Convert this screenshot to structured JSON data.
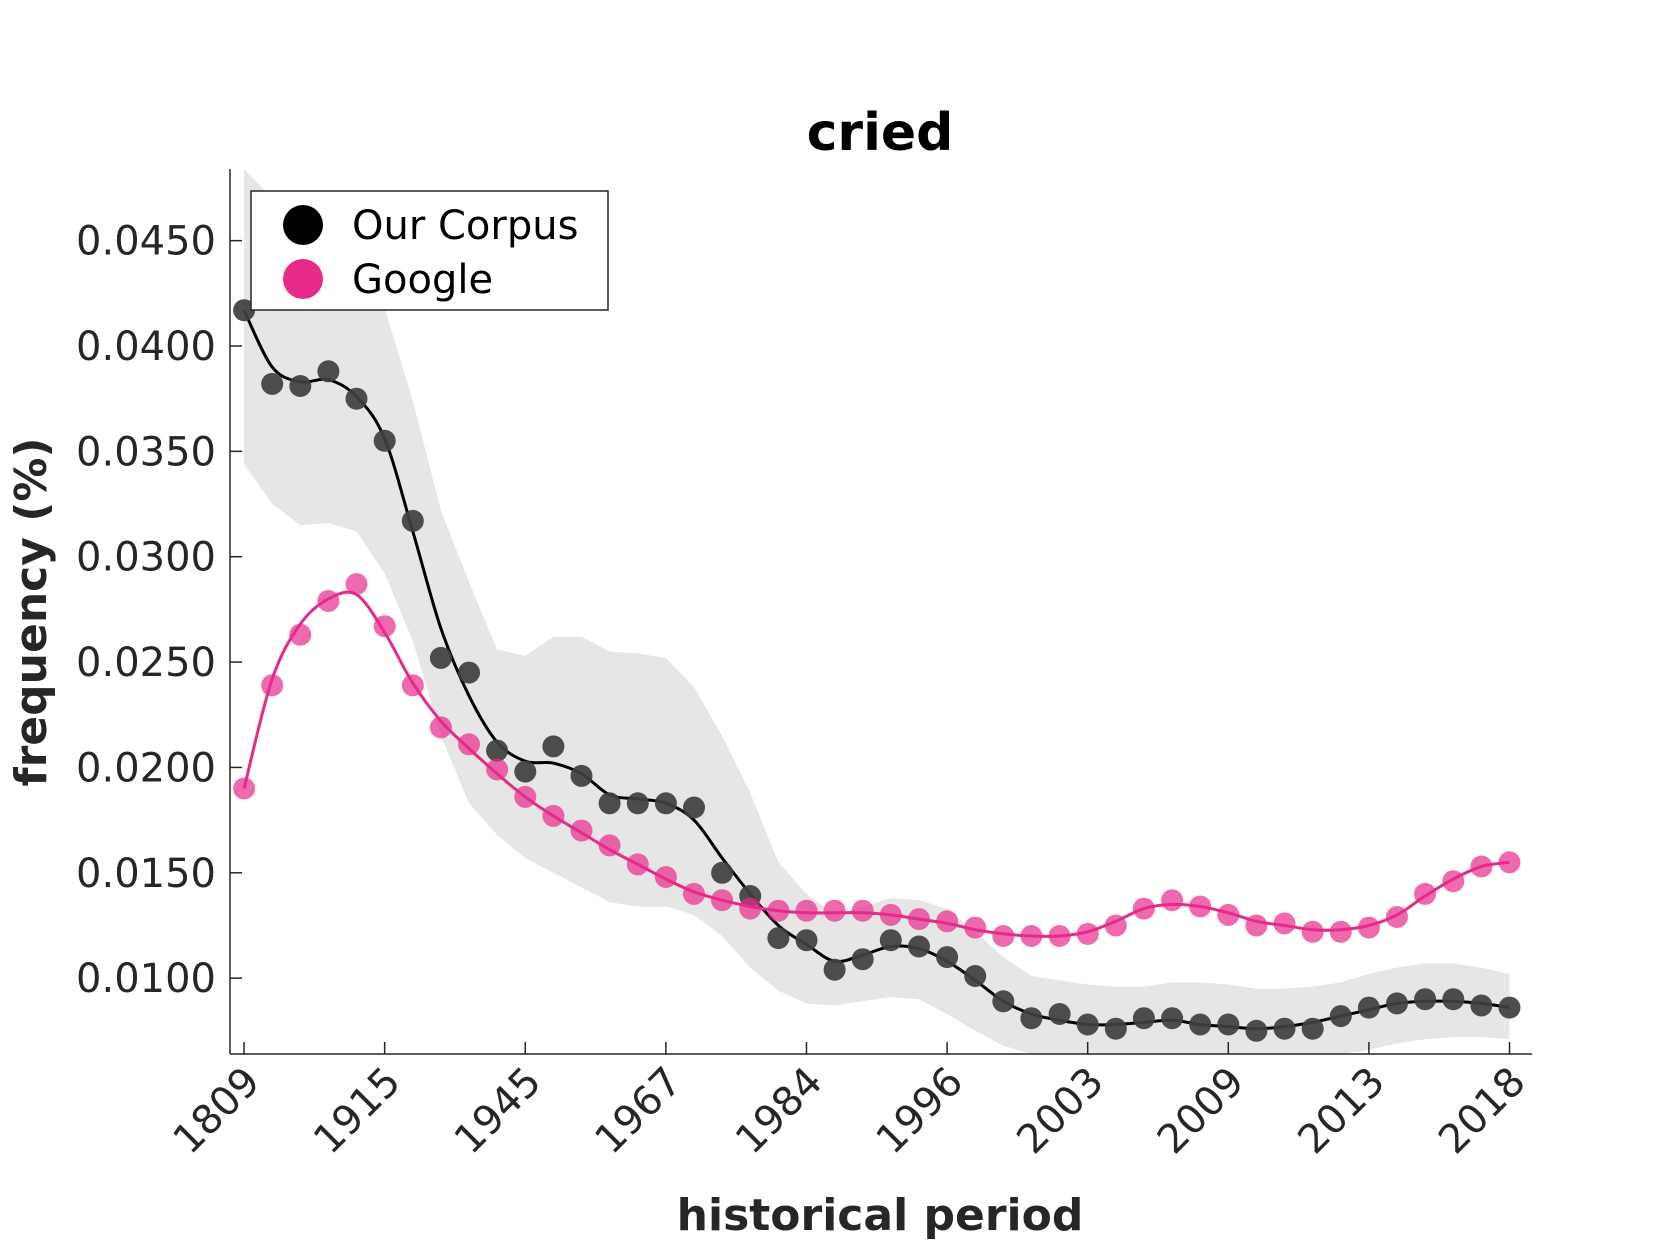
{
  "chart_data": {
    "type": "line",
    "title": "cried",
    "xlabel": "historical period",
    "ylabel": "frequency (%)",
    "x_tick_labels": [
      "1809",
      "1915",
      "1945",
      "1967",
      "1984",
      "1996",
      "2003",
      "2009",
      "2013",
      "2018"
    ],
    "y_ticks": [
      0.01,
      0.015,
      0.02,
      0.025,
      0.03,
      0.035,
      0.04,
      0.045
    ],
    "y_tick_labels": [
      "0.0100",
      "0.0150",
      "0.0200",
      "0.0250",
      "0.0300",
      "0.0350",
      "0.0400",
      "0.0450"
    ],
    "ylim": [
      0.0064,
      0.0484
    ],
    "xlim": [
      -0.5,
      45.8
    ],
    "grid": false,
    "legend_position": "top-left",
    "series": [
      {
        "name": "Our Corpus",
        "color": "#404040",
        "line_color": "#000000",
        "points": [
          0.0417,
          0.0382,
          0.0381,
          0.0388,
          0.0375,
          0.0355,
          0.0317,
          0.0252,
          0.0245,
          0.0208,
          0.0198,
          0.021,
          0.0196,
          0.0183,
          0.0183,
          0.0183,
          0.0181,
          0.015,
          0.0139,
          0.0119,
          0.0118,
          0.0104,
          0.0109,
          0.0118,
          0.0115,
          0.011,
          0.0101,
          0.0089,
          0.0081,
          0.0083,
          0.0078,
          0.0076,
          0.0081,
          0.0081,
          0.0078,
          0.0078,
          0.0075,
          0.0076,
          0.0076,
          0.0082,
          0.0086,
          0.0088,
          0.009,
          0.009,
          0.0087,
          0.0086
        ],
        "smooth": [
          0.0417,
          0.039,
          0.0383,
          0.0384,
          0.0376,
          0.0356,
          0.0312,
          0.0266,
          0.0234,
          0.0212,
          0.0203,
          0.0202,
          0.0197,
          0.0187,
          0.0185,
          0.0183,
          0.0175,
          0.0157,
          0.014,
          0.0125,
          0.0116,
          0.0108,
          0.0111,
          0.0115,
          0.0114,
          0.0108,
          0.0099,
          0.0089,
          0.0083,
          0.008,
          0.0078,
          0.0078,
          0.0079,
          0.008,
          0.0078,
          0.0077,
          0.0076,
          0.0077,
          0.0079,
          0.0082,
          0.0085,
          0.0088,
          0.0089,
          0.0089,
          0.0088,
          0.0086
        ],
        "band_upper": [
          0.0484,
          0.047,
          0.0463,
          0.0458,
          0.0446,
          0.0418,
          0.0374,
          0.0322,
          0.0288,
          0.0256,
          0.0253,
          0.0262,
          0.0262,
          0.0255,
          0.0254,
          0.0252,
          0.0238,
          0.0215,
          0.0188,
          0.0155,
          0.014,
          0.013,
          0.0134,
          0.0138,
          0.0137,
          0.0133,
          0.0122,
          0.011,
          0.0101,
          0.0099,
          0.0097,
          0.0096,
          0.0096,
          0.0098,
          0.0098,
          0.0097,
          0.0095,
          0.0095,
          0.0096,
          0.0098,
          0.0102,
          0.0105,
          0.0107,
          0.0107,
          0.0105,
          0.0102
        ],
        "band_lower": [
          0.0344,
          0.0325,
          0.0315,
          0.0316,
          0.0312,
          0.0292,
          0.026,
          0.0215,
          0.0183,
          0.0168,
          0.0157,
          0.015,
          0.0143,
          0.0136,
          0.0134,
          0.0134,
          0.013,
          0.012,
          0.0105,
          0.0094,
          0.0088,
          0.0087,
          0.0089,
          0.0091,
          0.009,
          0.0083,
          0.0075,
          0.0068,
          0.0064,
          0.0064,
          0.0064,
          0.0064,
          0.0064,
          0.0064,
          0.0064,
          0.0064,
          0.0064,
          0.0064,
          0.0064,
          0.0064,
          0.0066,
          0.0069,
          0.0071,
          0.0072,
          0.0072,
          0.0071
        ]
      },
      {
        "name": "Google",
        "color": "#e7298a",
        "line_color": "#e7298a",
        "points": [
          0.019,
          0.0239,
          0.0263,
          0.0279,
          0.0287,
          0.0267,
          0.0239,
          0.0219,
          0.0211,
          0.0199,
          0.0186,
          0.0177,
          0.017,
          0.0163,
          0.0154,
          0.0148,
          0.014,
          0.0137,
          0.0133,
          0.0132,
          0.0132,
          0.0132,
          0.0132,
          0.013,
          0.0128,
          0.0127,
          0.0124,
          0.012,
          0.012,
          0.012,
          0.0121,
          0.0125,
          0.0133,
          0.0137,
          0.0134,
          0.013,
          0.0125,
          0.0126,
          0.0122,
          0.0122,
          0.0124,
          0.0129,
          0.014,
          0.0146,
          0.0153,
          0.0155
        ],
        "smooth": [
          0.019,
          0.0242,
          0.0268,
          0.028,
          0.0282,
          0.0264,
          0.024,
          0.0222,
          0.0209,
          0.0197,
          0.0186,
          0.0177,
          0.0169,
          0.0161,
          0.0154,
          0.0147,
          0.0141,
          0.0137,
          0.0134,
          0.0132,
          0.0131,
          0.0131,
          0.0131,
          0.013,
          0.0128,
          0.0126,
          0.0123,
          0.0121,
          0.012,
          0.012,
          0.0122,
          0.0127,
          0.0133,
          0.0135,
          0.0134,
          0.0131,
          0.0127,
          0.0125,
          0.0123,
          0.0123,
          0.0125,
          0.013,
          0.0139,
          0.0147,
          0.0153,
          0.0155
        ]
      }
    ]
  }
}
